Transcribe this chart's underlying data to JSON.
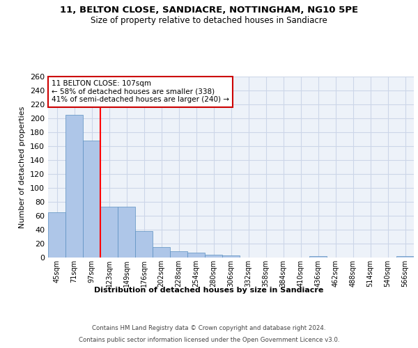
{
  "title1": "11, BELTON CLOSE, SANDIACRE, NOTTINGHAM, NG10 5PE",
  "title2": "Size of property relative to detached houses in Sandiacre",
  "xlabel": "Distribution of detached houses by size in Sandiacre",
  "ylabel": "Number of detached properties",
  "categories": [
    "45sqm",
    "71sqm",
    "97sqm",
    "123sqm",
    "149sqm",
    "176sqm",
    "202sqm",
    "228sqm",
    "254sqm",
    "280sqm",
    "306sqm",
    "332sqm",
    "358sqm",
    "384sqm",
    "410sqm",
    "436sqm",
    "462sqm",
    "488sqm",
    "514sqm",
    "540sqm",
    "566sqm"
  ],
  "values": [
    65,
    205,
    168,
    73,
    73,
    38,
    15,
    9,
    7,
    4,
    3,
    0,
    0,
    0,
    0,
    2,
    0,
    0,
    0,
    0,
    2
  ],
  "bar_color": "#aec6e8",
  "bar_edge_color": "#5a8fc0",
  "grid_color": "#ccd6e8",
  "background_color": "#edf2f9",
  "red_line_x": 2.5,
  "annotation_line1": "11 BELTON CLOSE: 107sqm",
  "annotation_line2": "← 58% of detached houses are smaller (338)",
  "annotation_line3": "41% of semi-detached houses are larger (240) →",
  "annotation_box_color": "#ffffff",
  "annotation_border_color": "#cc0000",
  "footer_line1": "Contains HM Land Registry data © Crown copyright and database right 2024.",
  "footer_line2": "Contains public sector information licensed under the Open Government Licence v3.0.",
  "ylim": [
    0,
    260
  ],
  "yticks": [
    0,
    20,
    40,
    60,
    80,
    100,
    120,
    140,
    160,
    180,
    200,
    220,
    240,
    260
  ]
}
